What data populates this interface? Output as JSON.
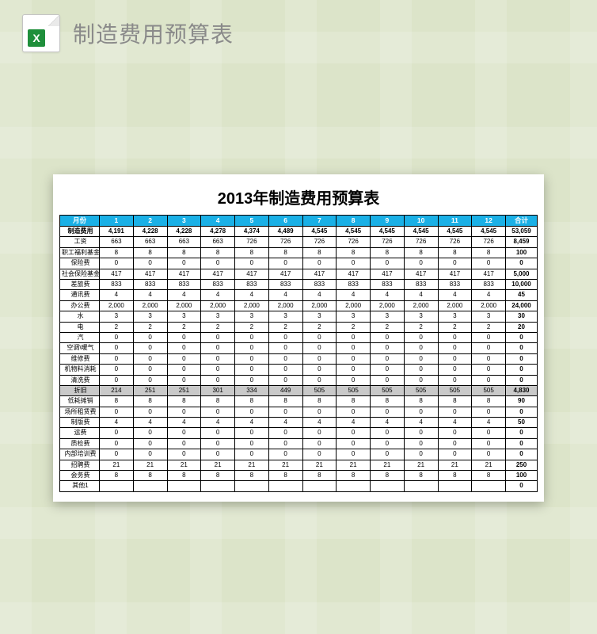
{
  "header": {
    "icon_letter": "X",
    "title": "制造费用预算表"
  },
  "sheet": {
    "title": "2013年制造费用预算表",
    "colors": {
      "page_bg": "#dce4c9",
      "header_bg": "#1ab0e6",
      "header_text": "#ffffff",
      "highlight_row": "#c9c9c9",
      "border": "#000000",
      "sheet_bg": "#ffffff"
    },
    "columns": [
      "月份",
      "1",
      "2",
      "3",
      "4",
      "5",
      "6",
      "7",
      "8",
      "9",
      "10",
      "11",
      "12",
      "合计"
    ],
    "rows": [
      {
        "label": "制造费用",
        "vals": [
          "4,191",
          "4,228",
          "4,228",
          "4,278",
          "4,374",
          "4,489",
          "4,545",
          "4,545",
          "4,545",
          "4,545",
          "4,545",
          "4,545"
        ],
        "total": "53,059",
        "bold": true
      },
      {
        "label": "工资",
        "vals": [
          "663",
          "663",
          "663",
          "663",
          "726",
          "726",
          "726",
          "726",
          "726",
          "726",
          "726",
          "726"
        ],
        "total": "8,459"
      },
      {
        "label": "职工福利基金",
        "vals": [
          "8",
          "8",
          "8",
          "8",
          "8",
          "8",
          "8",
          "8",
          "8",
          "8",
          "8",
          "8"
        ],
        "total": "100"
      },
      {
        "label": "保险费",
        "vals": [
          "0",
          "0",
          "0",
          "0",
          "0",
          "0",
          "0",
          "0",
          "0",
          "0",
          "0",
          "0"
        ],
        "total": "0"
      },
      {
        "label": "社会保险基金",
        "vals": [
          "417",
          "417",
          "417",
          "417",
          "417",
          "417",
          "417",
          "417",
          "417",
          "417",
          "417",
          "417"
        ],
        "total": "5,000"
      },
      {
        "label": "差旅费",
        "vals": [
          "833",
          "833",
          "833",
          "833",
          "833",
          "833",
          "833",
          "833",
          "833",
          "833",
          "833",
          "833"
        ],
        "total": "10,000"
      },
      {
        "label": "通讯费",
        "vals": [
          "4",
          "4",
          "4",
          "4",
          "4",
          "4",
          "4",
          "4",
          "4",
          "4",
          "4",
          "4"
        ],
        "total": "45"
      },
      {
        "label": "办公费",
        "vals": [
          "2,000",
          "2,000",
          "2,000",
          "2,000",
          "2,000",
          "2,000",
          "2,000",
          "2,000",
          "2,000",
          "2,000",
          "2,000",
          "2,000"
        ],
        "total": "24,000"
      },
      {
        "label": "水",
        "vals": [
          "3",
          "3",
          "3",
          "3",
          "3",
          "3",
          "3",
          "3",
          "3",
          "3",
          "3",
          "3"
        ],
        "total": "30"
      },
      {
        "label": "电",
        "vals": [
          "2",
          "2",
          "2",
          "2",
          "2",
          "2",
          "2",
          "2",
          "2",
          "2",
          "2",
          "2"
        ],
        "total": "20"
      },
      {
        "label": "汽",
        "vals": [
          "0",
          "0",
          "0",
          "0",
          "0",
          "0",
          "0",
          "0",
          "0",
          "0",
          "0",
          "0"
        ],
        "total": "0"
      },
      {
        "label": "空调\\暖气",
        "vals": [
          "0",
          "0",
          "0",
          "0",
          "0",
          "0",
          "0",
          "0",
          "0",
          "0",
          "0",
          "0"
        ],
        "total": "0"
      },
      {
        "label": "维修费",
        "vals": [
          "0",
          "0",
          "0",
          "0",
          "0",
          "0",
          "0",
          "0",
          "0",
          "0",
          "0",
          "0"
        ],
        "total": "0"
      },
      {
        "label": "机物料消耗",
        "vals": [
          "0",
          "0",
          "0",
          "0",
          "0",
          "0",
          "0",
          "0",
          "0",
          "0",
          "0",
          "0"
        ],
        "total": "0"
      },
      {
        "label": "清洗费",
        "vals": [
          "0",
          "0",
          "0",
          "0",
          "0",
          "0",
          "0",
          "0",
          "0",
          "0",
          "0",
          "0"
        ],
        "total": "0"
      },
      {
        "label": "折旧",
        "vals": [
          "214",
          "251",
          "251",
          "301",
          "334",
          "449",
          "505",
          "505",
          "505",
          "505",
          "505",
          "505"
        ],
        "total": "4,830",
        "highlight": true
      },
      {
        "label": "低耗摊销",
        "vals": [
          "8",
          "8",
          "8",
          "8",
          "8",
          "8",
          "8",
          "8",
          "8",
          "8",
          "8",
          "8"
        ],
        "total": "90"
      },
      {
        "label": "场所租赁费",
        "vals": [
          "0",
          "0",
          "0",
          "0",
          "0",
          "0",
          "0",
          "0",
          "0",
          "0",
          "0",
          "0"
        ],
        "total": "0"
      },
      {
        "label": "制版费",
        "vals": [
          "4",
          "4",
          "4",
          "4",
          "4",
          "4",
          "4",
          "4",
          "4",
          "4",
          "4",
          "4"
        ],
        "total": "50"
      },
      {
        "label": "运费",
        "vals": [
          "0",
          "0",
          "0",
          "0",
          "0",
          "0",
          "0",
          "0",
          "0",
          "0",
          "0",
          "0"
        ],
        "total": "0"
      },
      {
        "label": "质检费",
        "vals": [
          "0",
          "0",
          "0",
          "0",
          "0",
          "0",
          "0",
          "0",
          "0",
          "0",
          "0",
          "0"
        ],
        "total": "0"
      },
      {
        "label": "内部培训费",
        "vals": [
          "0",
          "0",
          "0",
          "0",
          "0",
          "0",
          "0",
          "0",
          "0",
          "0",
          "0",
          "0"
        ],
        "total": "0"
      },
      {
        "label": "招聘费",
        "vals": [
          "21",
          "21",
          "21",
          "21",
          "21",
          "21",
          "21",
          "21",
          "21",
          "21",
          "21",
          "21"
        ],
        "total": "250"
      },
      {
        "label": "会务费",
        "vals": [
          "8",
          "8",
          "8",
          "8",
          "8",
          "8",
          "8",
          "8",
          "8",
          "8",
          "8",
          "8"
        ],
        "total": "100"
      },
      {
        "label": "其他1",
        "vals": [
          "",
          "",
          "",
          "",
          "",
          "",
          "",
          "",
          "",
          "",
          "",
          ""
        ],
        "total": "0"
      }
    ]
  }
}
